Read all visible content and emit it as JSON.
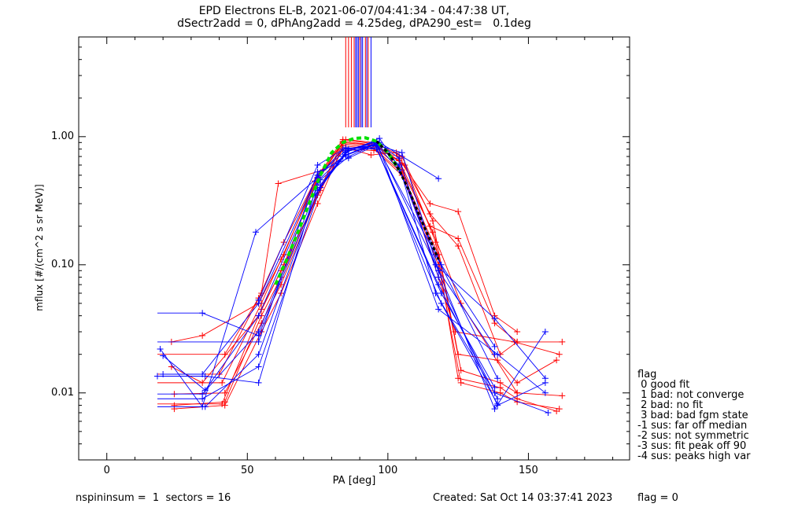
{
  "title_line1": "EPD Electrons EL-B, 2021-06-07/04:41:34 - 04:47:38 UT,",
  "title_line2": "dSectr2add = 0, dPhAng2add = 4.25deg, dPA290_est=   0.1deg",
  "footer": {
    "left": "nspininsum =  1  sectors = 16",
    "created": "Created: Sat Oct 14 03:37:41 2023",
    "flag": "flag = 0"
  },
  "legend": {
    "title": "flag",
    "items": [
      " 0 good fit",
      " 1 bad: not converge",
      " 2 bad: no fit",
      " 3 bad: bad fgm state",
      "-1 sus: far off median",
      "-2 sus: not symmetric",
      "-3 sus: fit peak off 90",
      "-4 sus: peaks high var"
    ]
  },
  "colors": {
    "red": "#ff0000",
    "blue": "#0000ff",
    "green": "#00e000",
    "black": "#000000"
  },
  "chart_data": {
    "type": "line",
    "xlabel": "PA [deg]",
    "ylabel": "mflux [#/(cm^2 s sr MeV)]",
    "xlim": [
      -10,
      186
    ],
    "ylim": [
      0.003,
      6
    ],
    "yscale": "log",
    "xticks": [
      "0",
      "50",
      "100",
      "150"
    ],
    "xtick_values": [
      0,
      50,
      100,
      150
    ],
    "yticks": [
      "0.01",
      "0.10",
      "1.00"
    ],
    "ytick_values": [
      0.01,
      0.1,
      1.0
    ],
    "series": [
      {
        "color": "red",
        "x": [
          23,
          34,
          54,
          63,
          74,
          84,
          95,
          105,
          115,
          125,
          138,
          146
        ],
        "y": [
          0.025,
          0.028,
          0.05,
          0.12,
          0.45,
          0.95,
          0.88,
          0.62,
          0.3,
          0.26,
          0.04,
          0.03
        ]
      },
      {
        "color": "red",
        "x": [
          23,
          34,
          54,
          63,
          74,
          84,
          95,
          105,
          115,
          125,
          138,
          146
        ],
        "y": [
          0.016,
          0.012,
          0.04,
          0.1,
          0.42,
          0.9,
          0.85,
          0.55,
          0.2,
          0.16,
          0.035,
          0.025
        ]
      },
      {
        "color": "red",
        "x": [
          24,
          42,
          55,
          62,
          75,
          84,
          95,
          105,
          118,
          126,
          140,
          146,
          161
        ],
        "y": [
          0.0075,
          0.008,
          0.03,
          0.06,
          0.3,
          0.85,
          0.8,
          0.5,
          0.1,
          0.012,
          0.01,
          0.0085,
          0.0075
        ]
      },
      {
        "color": "red",
        "x": [
          24,
          42,
          55,
          62,
          75,
          84,
          95,
          105,
          118,
          126,
          140,
          146,
          162
        ],
        "y": [
          0.0098,
          0.01,
          0.035,
          0.07,
          0.35,
          0.88,
          0.82,
          0.52,
          0.12,
          0.015,
          0.012,
          0.01,
          0.0095
        ]
      },
      {
        "color": "red",
        "x": [
          24,
          42,
          55,
          62,
          76,
          84,
          95,
          106,
          117,
          125,
          140,
          146,
          160
        ],
        "y": [
          0.008,
          0.0085,
          0.04,
          0.08,
          0.4,
          0.92,
          0.86,
          0.6,
          0.15,
          0.013,
          0.011,
          0.009,
          0.0072
        ]
      },
      {
        "color": "red",
        "x": [
          41,
          55,
          62,
          76,
          84,
          95,
          104,
          115,
          125,
          140,
          146,
          162
        ],
        "y": [
          0.0082,
          0.045,
          0.09,
          0.38,
          0.8,
          0.78,
          0.7,
          0.25,
          0.14,
          0.02,
          0.025,
          0.025
        ]
      },
      {
        "color": "red",
        "x": [
          40,
          55,
          61,
          77,
          85,
          94,
          103,
          118,
          124,
          145,
          161
        ],
        "y": [
          0.014,
          0.06,
          0.43,
          0.55,
          0.82,
          0.72,
          0.75,
          0.08,
          0.03,
          0.025,
          0.02
        ]
      },
      {
        "color": "red",
        "x": [
          42,
          54,
          63,
          75,
          84,
          96,
          104,
          116,
          126,
          146
        ],
        "y": [
          0.02,
          0.055,
          0.15,
          0.5,
          0.9,
          0.85,
          0.65,
          0.18,
          0.05,
          0.01
        ]
      },
      {
        "color": "red",
        "x": [
          41,
          55,
          62,
          75,
          85,
          95,
          105,
          116,
          125,
          139,
          146,
          160
        ],
        "y": [
          0.012,
          0.05,
          0.11,
          0.48,
          0.95,
          0.9,
          0.7,
          0.22,
          0.02,
          0.018,
          0.012,
          0.018
        ]
      },
      {
        "color": "blue",
        "x": [
          19,
          34,
          53,
          75,
          84,
          96,
          105,
          118,
          138,
          156
        ],
        "y": [
          0.022,
          0.0078,
          0.18,
          0.48,
          0.8,
          0.86,
          0.75,
          0.09,
          0.0075,
          0.03
        ]
      },
      {
        "color": "blue",
        "x": [
          20,
          34,
          54,
          75,
          85,
          96,
          104,
          118,
          139,
          156
        ],
        "y": [
          0.014,
          0.014,
          0.05,
          0.5,
          0.72,
          0.9,
          0.68,
          0.08,
          0.008,
          0.012
        ]
      },
      {
        "color": "blue",
        "x": [
          20,
          35,
          54,
          75,
          84,
          96,
          104,
          117,
          138,
          157
        ],
        "y": [
          0.0195,
          0.0105,
          0.04,
          0.45,
          0.7,
          0.88,
          0.6,
          0.06,
          0.01,
          0.007
        ]
      },
      {
        "color": "blue",
        "x": [
          34,
          54,
          76,
          85,
          97,
          104,
          117,
          138,
          156
        ],
        "y": [
          0.042,
          0.028,
          0.42,
          0.75,
          0.97,
          0.58,
          0.1,
          0.038,
          0.013
        ]
      },
      {
        "color": "blue",
        "x": [
          18,
          35,
          54,
          76,
          85,
          96,
          118,
          139,
          156
        ],
        "y": [
          0.0135,
          0.0135,
          0.012,
          0.52,
          0.78,
          0.92,
          0.045,
          0.02,
          0.01
        ]
      },
      {
        "color": "blue",
        "x": [
          34,
          54,
          76,
          86,
          96,
          117,
          139
        ],
        "y": [
          0.009,
          0.016,
          0.4,
          0.8,
          0.85,
          0.12,
          0.013
        ]
      },
      {
        "color": "blue",
        "x": [
          35,
          54,
          75,
          85,
          95,
          118,
          139
        ],
        "y": [
          0.0078,
          0.02,
          0.38,
          0.76,
          0.9,
          0.07,
          0.009
        ]
      },
      {
        "color": "blue",
        "x": [
          34,
          54,
          76,
          86,
          96,
          118,
          138
        ],
        "y": [
          0.0098,
          0.03,
          0.46,
          0.7,
          0.88,
          0.09,
          0.02
        ]
      },
      {
        "color": "blue",
        "x": [
          54,
          75,
          86,
          96,
          104,
          119,
          138
        ],
        "y": [
          0.025,
          0.53,
          0.68,
          0.86,
          0.55,
          0.1,
          0.023
        ]
      },
      {
        "color": "blue",
        "x": [
          54,
          75,
          85,
          96,
          119,
          138
        ],
        "y": [
          0.053,
          0.6,
          0.82,
          0.8,
          0.06,
          0.011
        ]
      },
      {
        "color": "blue",
        "x": [
          74,
          86,
          96,
          119,
          139
        ],
        "y": [
          0.35,
          0.78,
          0.82,
          0.05,
          0.0082
        ]
      },
      {
        "color": "blue",
        "x": [
          85,
          97,
          118
        ],
        "y": [
          0.72,
          0.9,
          0.47
        ]
      }
    ],
    "fit_green": {
      "x": [
        60,
        64,
        68,
        72,
        76,
        80,
        84,
        88,
        92,
        96,
        100,
        104
      ],
      "y": [
        0.07,
        0.11,
        0.18,
        0.3,
        0.5,
        0.75,
        0.9,
        0.97,
        0.98,
        0.92,
        0.75,
        0.55
      ]
    },
    "fit_black": {
      "x": [
        96,
        100,
        104,
        108,
        112,
        116,
        118
      ],
      "y": [
        0.92,
        0.75,
        0.55,
        0.36,
        0.22,
        0.14,
        0.11
      ]
    },
    "peak_markers": [
      {
        "color": "red",
        "x": 85
      },
      {
        "color": "red",
        "x": 86
      },
      {
        "color": "red",
        "x": 87
      },
      {
        "color": "red",
        "x": 88
      },
      {
        "color": "red",
        "x": 90
      },
      {
        "color": "red",
        "x": 92
      },
      {
        "color": "red",
        "x": 93
      },
      {
        "color": "blue",
        "x": 88.5
      },
      {
        "color": "blue",
        "x": 89
      },
      {
        "color": "blue",
        "x": 89.5
      },
      {
        "color": "blue",
        "x": 90.5
      },
      {
        "color": "blue",
        "x": 91
      },
      {
        "color": "blue",
        "x": 92.5
      },
      {
        "color": "blue",
        "x": 94
      }
    ]
  }
}
